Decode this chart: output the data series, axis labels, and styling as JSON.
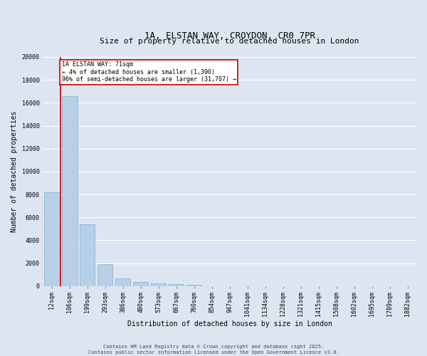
{
  "title": "1A, ELSTAN WAY, CROYDON, CR0 7PR",
  "subtitle": "Size of property relative to detached houses in London",
  "xlabel": "Distribution of detached houses by size in London",
  "ylabel": "Number of detached properties",
  "bar_color": "#b8cfe8",
  "bar_edge_color": "#7aafd4",
  "bg_color": "#dde6f0",
  "grid_color": "#ffffff",
  "categories": [
    "12sqm",
    "106sqm",
    "199sqm",
    "293sqm",
    "386sqm",
    "480sqm",
    "573sqm",
    "667sqm",
    "760sqm",
    "854sqm",
    "947sqm",
    "1041sqm",
    "1134sqm",
    "1228sqm",
    "1321sqm",
    "1415sqm",
    "1508sqm",
    "1602sqm",
    "1695sqm",
    "1789sqm",
    "1882sqm"
  ],
  "values": [
    8200,
    16600,
    5400,
    1900,
    700,
    330,
    220,
    180,
    130,
    10,
    5,
    0,
    0,
    0,
    0,
    0,
    0,
    0,
    0,
    0,
    0
  ],
  "ylim": [
    0,
    20000
  ],
  "yticks": [
    0,
    2000,
    4000,
    6000,
    8000,
    10000,
    12000,
    14000,
    16000,
    18000,
    20000
  ],
  "red_line_x": 0.5,
  "annotation_title": "1A ELSTAN WAY: 71sqm",
  "annotation_line1": "← 4% of detached houses are smaller (1,390)",
  "annotation_line2": "96% of semi-detached houses are larger (31,707) →",
  "annotation_box_color": "#ffffff",
  "annotation_box_edge": "#cc0000",
  "red_line_color": "#cc0000",
  "footer_line1": "Contains HM Land Registry data © Crown copyright and database right 2025.",
  "footer_line2": "Contains public sector information licensed under the Open Government Licence v3.0.",
  "title_fontsize": 9,
  "subtitle_fontsize": 8,
  "ylabel_fontsize": 7,
  "xlabel_fontsize": 7,
  "tick_fontsize": 6,
  "footer_fontsize": 5,
  "annotation_fontsize": 6
}
